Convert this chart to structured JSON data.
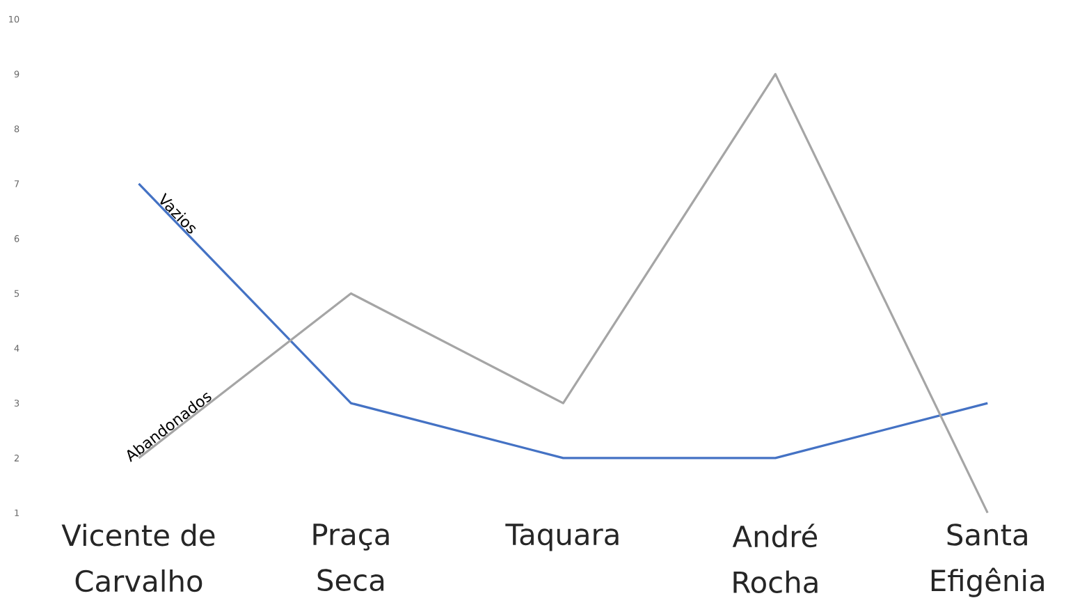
{
  "chart_data": {
    "type": "line",
    "categories": [
      "Vicente de Carvalho",
      "Praça Seca",
      "Taquara",
      "André Rocha",
      "Santa Efigênia"
    ],
    "series": [
      {
        "name": "Vazios",
        "color": "#4472c4",
        "values": [
          7,
          3,
          2,
          2,
          3
        ]
      },
      {
        "name": "Abandonados",
        "color": "#a5a5a5",
        "values": [
          2,
          5,
          3,
          9,
          1
        ]
      }
    ],
    "ylim": [
      1,
      10
    ],
    "yticks": [
      1,
      2,
      3,
      4,
      5,
      6,
      7,
      8,
      9,
      10
    ],
    "grid": false
  }
}
